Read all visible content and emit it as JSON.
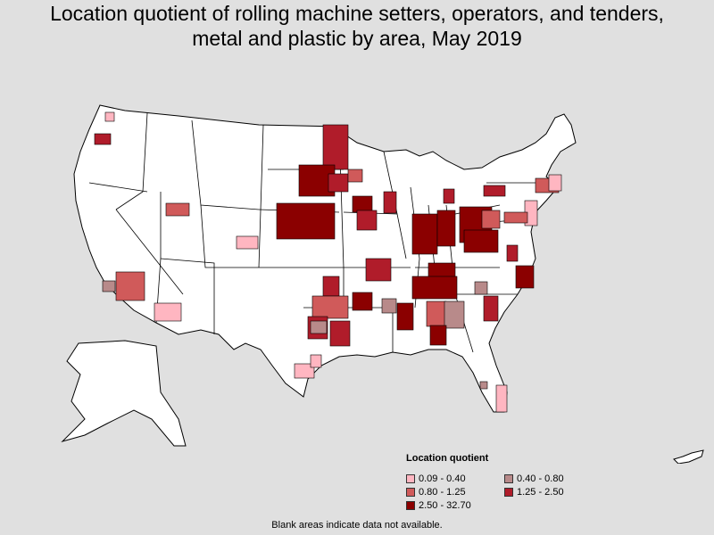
{
  "title": {
    "line1": "Location quotient of rolling machine setters, operators, and tenders,",
    "line2": "metal and plastic by area, May 2019"
  },
  "legend": {
    "title": "Location quotient",
    "items": [
      {
        "label": "0.09 - 0.40",
        "color": "#ffb6c1"
      },
      {
        "label": "0.40 - 0.80",
        "color": "#b88a8a"
      },
      {
        "label": "0.80 - 1.25",
        "color": "#d05a5a"
      },
      {
        "label": "1.25 - 2.50",
        "color": "#b01c2a"
      },
      {
        "label": "2.50 - 32.70",
        "color": "#8b0000"
      }
    ]
  },
  "footnote": "Blank areas indicate data not available.",
  "colors": {
    "background": "#e0e0e0",
    "land": "#ffffff",
    "border": "#000000"
  }
}
